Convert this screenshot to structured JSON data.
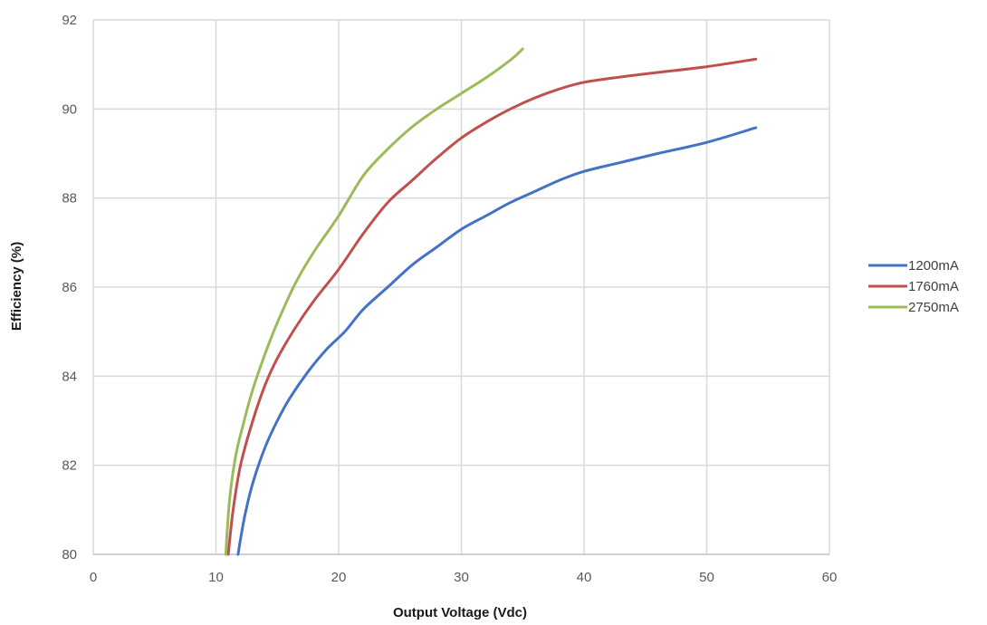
{
  "chart_data": {
    "type": "line",
    "title": "",
    "xlabel": "Output Voltage (Vdc)",
    "ylabel": "Efficiency (%)",
    "xlim": [
      0,
      60
    ],
    "ylim": [
      80,
      92
    ],
    "x_ticks": [
      0,
      10,
      20,
      30,
      40,
      50,
      60
    ],
    "y_ticks": [
      80,
      82,
      84,
      86,
      88,
      90,
      92
    ],
    "grid": true,
    "legend_position": "right",
    "series": [
      {
        "name": "1200mA",
        "color": "#4472C4",
        "points": [
          [
            11.8,
            80.0
          ],
          [
            12.3,
            80.8
          ],
          [
            13.0,
            81.6
          ],
          [
            14.0,
            82.4
          ],
          [
            15.0,
            83.0
          ],
          [
            16.0,
            83.5
          ],
          [
            17.5,
            84.1
          ],
          [
            19.0,
            84.6
          ],
          [
            20.5,
            85.0
          ],
          [
            22.0,
            85.5
          ],
          [
            24.0,
            86.0
          ],
          [
            26.0,
            86.5
          ],
          [
            28.0,
            86.9
          ],
          [
            30.0,
            87.3
          ],
          [
            32.0,
            87.6
          ],
          [
            34.0,
            87.9
          ],
          [
            36.0,
            88.15
          ],
          [
            38.0,
            88.4
          ],
          [
            40.0,
            88.6
          ],
          [
            43.0,
            88.8
          ],
          [
            46.0,
            89.0
          ],
          [
            50.0,
            89.25
          ],
          [
            54.0,
            89.58
          ]
        ]
      },
      {
        "name": "1760mA",
        "color": "#C0504D",
        "points": [
          [
            11.0,
            80.0
          ],
          [
            11.4,
            81.0
          ],
          [
            12.0,
            82.0
          ],
          [
            13.0,
            83.0
          ],
          [
            14.0,
            83.8
          ],
          [
            15.0,
            84.4
          ],
          [
            16.5,
            85.1
          ],
          [
            18.0,
            85.7
          ],
          [
            20.0,
            86.4
          ],
          [
            22.0,
            87.2
          ],
          [
            24.0,
            87.9
          ],
          [
            26.0,
            88.4
          ],
          [
            28.0,
            88.9
          ],
          [
            30.0,
            89.35
          ],
          [
            32.0,
            89.7
          ],
          [
            34.0,
            90.0
          ],
          [
            36.0,
            90.25
          ],
          [
            38.0,
            90.45
          ],
          [
            40.0,
            90.6
          ],
          [
            43.0,
            90.72
          ],
          [
            46.0,
            90.82
          ],
          [
            50.0,
            90.95
          ],
          [
            54.0,
            91.12
          ]
        ]
      },
      {
        "name": "2750mA",
        "color": "#9BBB59",
        "points": [
          [
            10.8,
            80.0
          ],
          [
            11.1,
            81.2
          ],
          [
            11.6,
            82.2
          ],
          [
            12.3,
            83.0
          ],
          [
            13.0,
            83.7
          ],
          [
            14.0,
            84.5
          ],
          [
            15.0,
            85.2
          ],
          [
            16.5,
            86.1
          ],
          [
            18.0,
            86.8
          ],
          [
            20.0,
            87.6
          ],
          [
            22.0,
            88.5
          ],
          [
            24.0,
            89.1
          ],
          [
            26.0,
            89.6
          ],
          [
            28.0,
            90.0
          ],
          [
            30.0,
            90.35
          ],
          [
            32.0,
            90.7
          ],
          [
            34.0,
            91.1
          ],
          [
            35.0,
            91.35
          ]
        ]
      }
    ]
  }
}
